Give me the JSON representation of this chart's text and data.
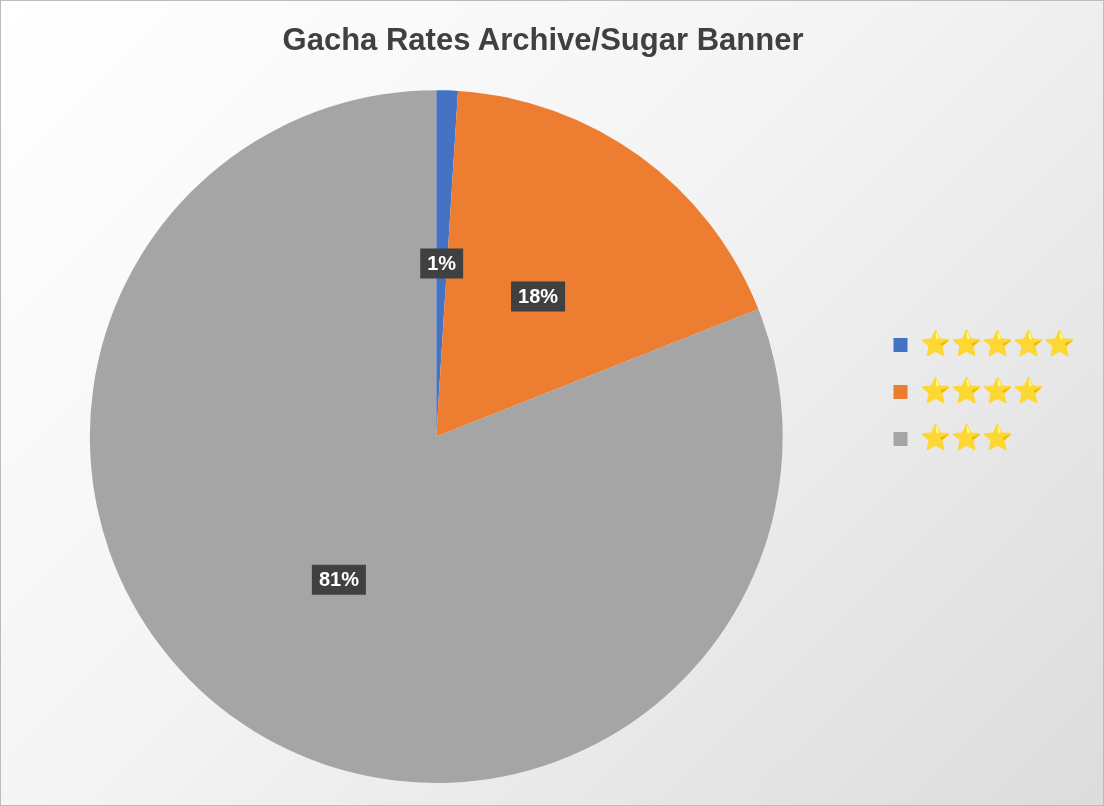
{
  "chart_data": {
    "type": "pie",
    "title": "Gacha Rates Archive/Sugar Banner",
    "categories": [
      "⭐⭐⭐⭐⭐",
      "⭐⭐⭐⭐",
      "⭐⭐⭐"
    ],
    "values": [
      1,
      18,
      81
    ],
    "colors": [
      "#4472c4",
      "#ed7d31",
      "#a5a5a5"
    ],
    "value_labels": [
      "1%",
      "18%",
      "81%"
    ],
    "legend": "right"
  }
}
